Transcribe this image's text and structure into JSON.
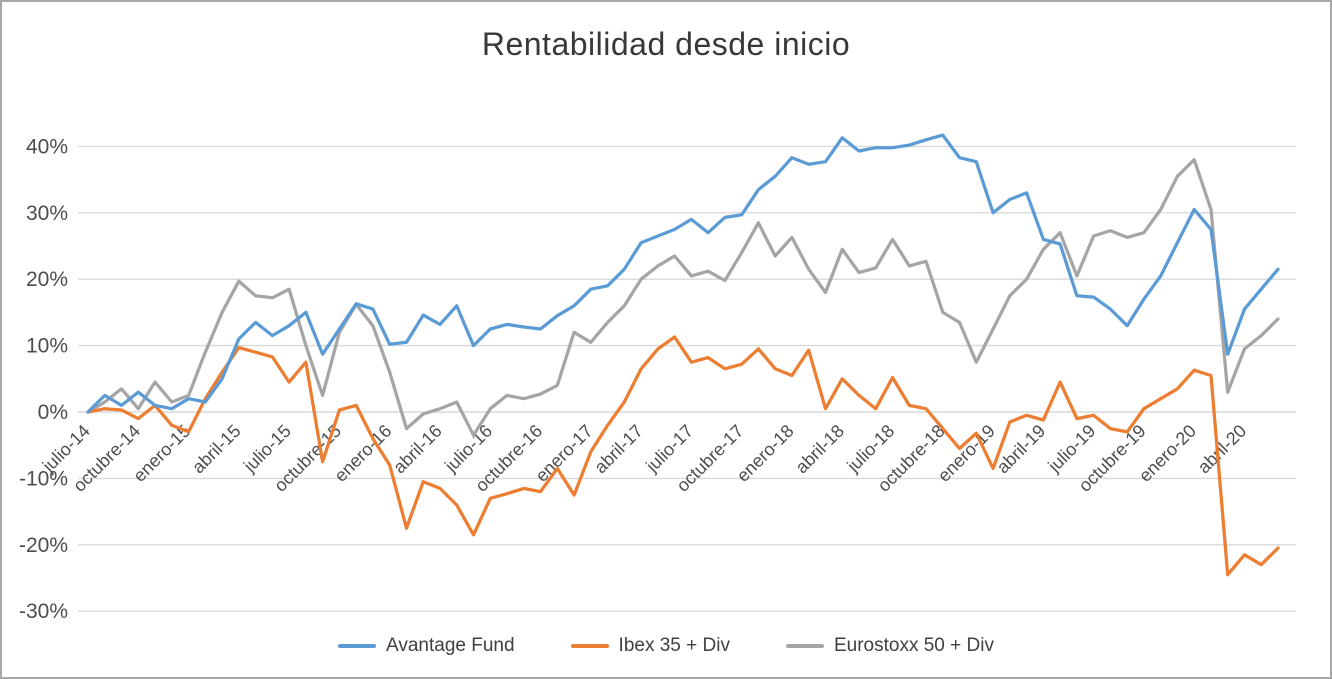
{
  "window": {
    "background": "#FFFFFF",
    "border_color": "#A8A8A8"
  },
  "chart_data": {
    "type": "line",
    "title": "Rentabilidad desde inicio",
    "grid": "horizontal",
    "legend_position": "bottom",
    "y_axis": {
      "unit": "%",
      "min": -30,
      "max": 40,
      "step": 10,
      "tick_labels": [
        "40%",
        "30%",
        "20%",
        "10%",
        "0%",
        "-10%",
        "-20%",
        "-30%"
      ]
    },
    "x_axis": {
      "tick_every_n_points": 3,
      "tick_labels": [
        "julio-14",
        "octubre-14",
        "enero-15",
        "abril-15",
        "julio-15",
        "octubre-15",
        "enero-16",
        "abril-16",
        "julio-16",
        "octubre-16",
        "enero-17",
        "abril-17",
        "julio-17",
        "octubre-17",
        "enero-18",
        "abril-18",
        "julio-18",
        "octubre-18",
        "enero-19",
        "abril-19",
        "julio-19",
        "octubre-19",
        "enero-20",
        "abril-20"
      ]
    },
    "x": [
      "julio-14",
      "agosto-14",
      "septiembre-14",
      "octubre-14",
      "noviembre-14",
      "diciembre-14",
      "enero-15",
      "febrero-15",
      "marzo-15",
      "abril-15",
      "mayo-15",
      "junio-15",
      "julio-15",
      "agosto-15",
      "septiembre-15",
      "octubre-15",
      "noviembre-15",
      "diciembre-15",
      "enero-16",
      "febrero-16",
      "marzo-16",
      "abril-16",
      "mayo-16",
      "junio-16",
      "julio-16",
      "agosto-16",
      "septiembre-16",
      "octubre-16",
      "noviembre-16",
      "diciembre-16",
      "enero-17",
      "febrero-17",
      "marzo-17",
      "abril-17",
      "mayo-17",
      "junio-17",
      "julio-17",
      "agosto-17",
      "septiembre-17",
      "octubre-17",
      "noviembre-17",
      "diciembre-17",
      "enero-18",
      "febrero-18",
      "marzo-18",
      "abril-18",
      "mayo-18",
      "junio-18",
      "julio-18",
      "agosto-18",
      "septiembre-18",
      "octubre-18",
      "noviembre-18",
      "diciembre-18",
      "enero-19",
      "febrero-19",
      "marzo-19",
      "abril-19",
      "mayo-19",
      "junio-19",
      "julio-19",
      "agosto-19",
      "septiembre-19",
      "octubre-19",
      "noviembre-19",
      "diciembre-19",
      "enero-20",
      "febrero-20",
      "marzo-20",
      "abril-20",
      "mayo-20",
      "junio-20"
    ],
    "series": [
      {
        "name": "Avantage Fund",
        "color": "#5B9BD5",
        "values": [
          0,
          2.5,
          1,
          3,
          1,
          0.5,
          2,
          1.5,
          5,
          11,
          13.5,
          11.5,
          13,
          15,
          8.7,
          12.5,
          16.3,
          15.5,
          10.2,
          10.5,
          14.6,
          13.2,
          16,
          10,
          12.5,
          13.2,
          12.8,
          12.5,
          14.5,
          16,
          18.5,
          19,
          21.5,
          25.5,
          26.5,
          27.5,
          29,
          27,
          29.3,
          29.7,
          33.5,
          35.5,
          38.3,
          37.3,
          37.7,
          41.3,
          39.3,
          39.8,
          39.8,
          40.2,
          41,
          41.7,
          38.3,
          37.7,
          30,
          32,
          33,
          26,
          25.3,
          17.5,
          17.3,
          15.5,
          13,
          17,
          20.5,
          25.5,
          30.5,
          27.5,
          8.7,
          15.5,
          18.5,
          21.5
        ]
      },
      {
        "name": "Ibex 35 + Div",
        "color": "#ED7D31",
        "values": [
          0,
          0.5,
          0.3,
          -1,
          1,
          -2,
          -3,
          2,
          6,
          9.7,
          9,
          8.3,
          4.5,
          7.5,
          -7.5,
          0.3,
          1,
          -4,
          -8,
          -17.5,
          -10.5,
          -11.5,
          -14,
          -18.5,
          -13,
          -12.3,
          -11.5,
          -12,
          -8.5,
          -12.5,
          -6,
          -2,
          1.5,
          6.5,
          9.5,
          11.3,
          7.5,
          8.2,
          6.5,
          7.2,
          9.5,
          6.5,
          5.5,
          9.3,
          0.5,
          5,
          2.5,
          0.5,
          5.2,
          1,
          0.5,
          -2.5,
          -5.5,
          -3.2,
          -8.5,
          -1.5,
          -0.5,
          -1.2,
          4.5,
          -1,
          -0.5,
          -2.5,
          -3,
          0.5,
          2,
          3.5,
          6.3,
          5.5,
          -24.5,
          -21.5,
          -23,
          -20.5
        ]
      },
      {
        "name": "Eurostoxx 50 + Div",
        "color": "#A5A5A5",
        "values": [
          0,
          1.5,
          3.5,
          0.5,
          4.5,
          1.5,
          2.5,
          9,
          15,
          19.7,
          17.5,
          17.2,
          18.5,
          10,
          2.5,
          12,
          16.2,
          13,
          6,
          -2.5,
          -0.3,
          0.5,
          1.5,
          -3.5,
          0.5,
          2.5,
          2,
          2.7,
          4,
          12,
          10.5,
          13.5,
          16,
          20,
          22,
          23.5,
          20.5,
          21.2,
          19.8,
          24,
          28.5,
          23.5,
          26.3,
          21.5,
          18,
          24.5,
          21,
          21.7,
          26,
          22,
          22.7,
          15,
          13.5,
          7.5,
          12.5,
          17.5,
          20,
          24.5,
          27,
          20.5,
          26.5,
          27.3,
          26.3,
          27,
          30.5,
          35.5,
          38,
          30.5,
          3,
          9.5,
          11.5,
          14
        ]
      }
    ]
  }
}
